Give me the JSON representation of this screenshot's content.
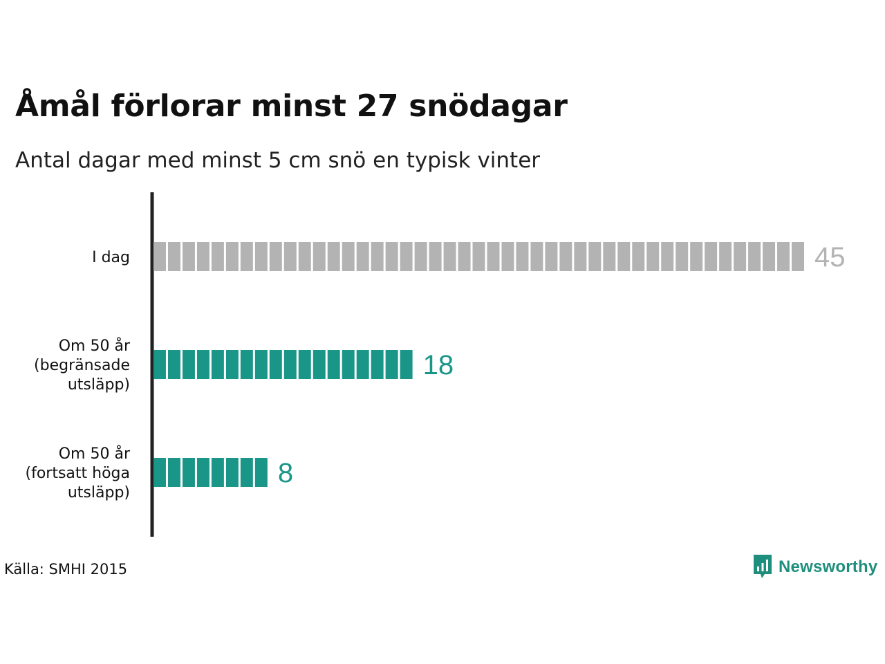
{
  "chart_data": {
    "type": "bar",
    "orientation": "horizontal",
    "title": "Åmål förlorar minst 27 snödagar",
    "subtitle": "Antal dagar med minst 5 cm snö en typisk vinter",
    "categories": [
      [
        "I dag"
      ],
      [
        "Om 50 år",
        "(begränsade",
        "utsläpp)"
      ],
      [
        "Om 50 år",
        "(fortsatt höga",
        "utsläpp)"
      ]
    ],
    "values": [
      45,
      18,
      8
    ],
    "value_labels": [
      "45",
      "18",
      "8"
    ],
    "colors": [
      "#b3b3b3",
      "#1a9688",
      "#1a9688"
    ],
    "label_colors": [
      "#b3b3b3",
      "#1a9688",
      "#1a9688"
    ],
    "unit_style": "one segment per day",
    "xlim": [
      0,
      45
    ]
  },
  "source": "Källa: SMHI 2015",
  "brand": {
    "name": "Newsworthy",
    "icon": "newsworthy-logo-icon",
    "color": "#1f8f7d"
  }
}
